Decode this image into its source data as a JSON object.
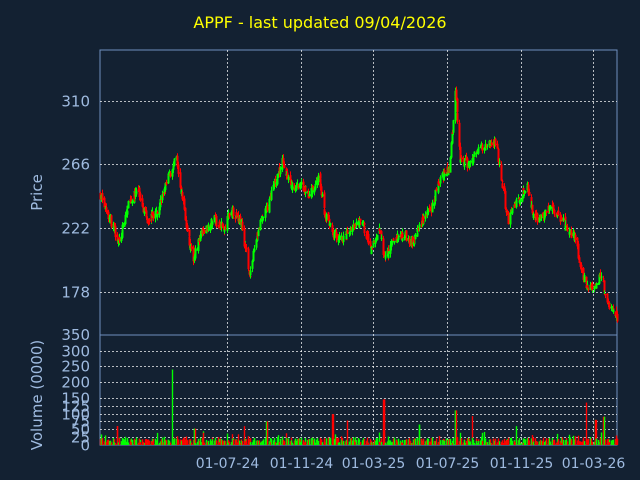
{
  "colors": {
    "background": "#132132",
    "up": "#00ff00",
    "down": "#ff0000",
    "grid": "#ffffff",
    "axis": "#6f90bf",
    "tick_text": "#9fbbe0",
    "title": "#ffff00"
  },
  "chart_data": [
    {
      "type": "candlestick",
      "title": "APPF - last updated 09/04/2026",
      "xlabel": "",
      "ylabel": "Price",
      "grid": true,
      "ylim": [
        148,
        345
      ],
      "yticks": [
        178,
        222,
        266,
        310
      ],
      "xtick_labels": [
        "01-07-24",
        "01-11-24",
        "01-03-25",
        "01-07-25",
        "01-11-25",
        "01-03-26"
      ],
      "x_range": [
        "2023-12-04",
        "2026-04-09"
      ],
      "close_trajectory": [
        [
          "2023-12-04",
          245
        ],
        [
          "2023-12-20",
          228
        ],
        [
          "2024-01-05",
          212
        ],
        [
          "2024-01-20",
          240
        ],
        [
          "2024-02-05",
          248
        ],
        [
          "2024-02-20",
          228
        ],
        [
          "2024-03-08",
          234
        ],
        [
          "2024-03-25",
          256
        ],
        [
          "2024-04-08",
          270
        ],
        [
          "2024-04-20",
          238
        ],
        [
          "2024-05-05",
          200
        ],
        [
          "2024-05-20",
          218
        ],
        [
          "2024-06-10",
          228
        ],
        [
          "2024-06-25",
          222
        ],
        [
          "2024-07-10",
          234
        ],
        [
          "2024-07-25",
          225
        ],
        [
          "2024-08-08",
          190
        ],
        [
          "2024-08-20",
          218
        ],
        [
          "2024-09-05",
          236
        ],
        [
          "2024-09-20",
          256
        ],
        [
          "2024-10-01",
          268
        ],
        [
          "2024-10-15",
          250
        ],
        [
          "2024-11-01",
          252
        ],
        [
          "2024-11-15",
          245
        ],
        [
          "2024-12-01",
          258
        ],
        [
          "2024-12-10",
          232
        ],
        [
          "2024-12-25",
          218
        ],
        [
          "2025-01-10",
          215
        ],
        [
          "2025-01-25",
          222
        ],
        [
          "2025-02-10",
          226
        ],
        [
          "2025-02-25",
          208
        ],
        [
          "2025-03-10",
          222
        ],
        [
          "2025-03-20",
          200
        ],
        [
          "2025-04-05",
          215
        ],
        [
          "2025-04-20",
          218
        ],
        [
          "2025-05-05",
          212
        ],
        [
          "2025-05-20",
          228
        ],
        [
          "2025-06-05",
          235
        ],
        [
          "2025-06-20",
          258
        ],
        [
          "2025-07-05",
          262
        ],
        [
          "2025-07-15",
          318
        ],
        [
          "2025-07-22",
          270
        ],
        [
          "2025-08-05",
          266
        ],
        [
          "2025-08-20",
          276
        ],
        [
          "2025-09-05",
          280
        ],
        [
          "2025-09-20",
          282
        ],
        [
          "2025-10-01",
          250
        ],
        [
          "2025-10-10",
          228
        ],
        [
          "2025-10-25",
          240
        ],
        [
          "2025-11-10",
          252
        ],
        [
          "2025-11-20",
          232
        ],
        [
          "2025-12-01",
          228
        ],
        [
          "2025-12-15",
          235
        ],
        [
          "2026-01-01",
          232
        ],
        [
          "2026-01-15",
          222
        ],
        [
          "2026-02-01",
          214
        ],
        [
          "2026-02-05",
          196
        ],
        [
          "2026-02-20",
          180
        ],
        [
          "2026-03-05",
          180
        ],
        [
          "2026-03-12",
          190
        ],
        [
          "2026-03-25",
          170
        ],
        [
          "2026-04-09",
          160
        ]
      ]
    },
    {
      "type": "bar",
      "title": "",
      "xlabel": "",
      "ylabel": "Volume (0000)",
      "grid": true,
      "ylim": [
        0,
        350
      ],
      "yticks": [
        0,
        25,
        50,
        75,
        100,
        125,
        150,
        200,
        250,
        300
      ],
      "spikes": [
        [
          "2024-01-01",
          60
        ],
        [
          "2024-03-31",
          240
        ],
        [
          "2024-05-08",
          52
        ],
        [
          "2024-07-28",
          60
        ],
        [
          "2024-09-05",
          75
        ],
        [
          "2024-12-23",
          98
        ],
        [
          "2025-01-18",
          78
        ],
        [
          "2025-03-18",
          145
        ],
        [
          "2025-05-16",
          65
        ],
        [
          "2025-07-15",
          110
        ],
        [
          "2025-08-10",
          92
        ],
        [
          "2025-10-25",
          60
        ],
        [
          "2026-02-15",
          135
        ],
        [
          "2026-03-04",
          80
        ],
        [
          "2026-03-18",
          90
        ]
      ]
    }
  ]
}
